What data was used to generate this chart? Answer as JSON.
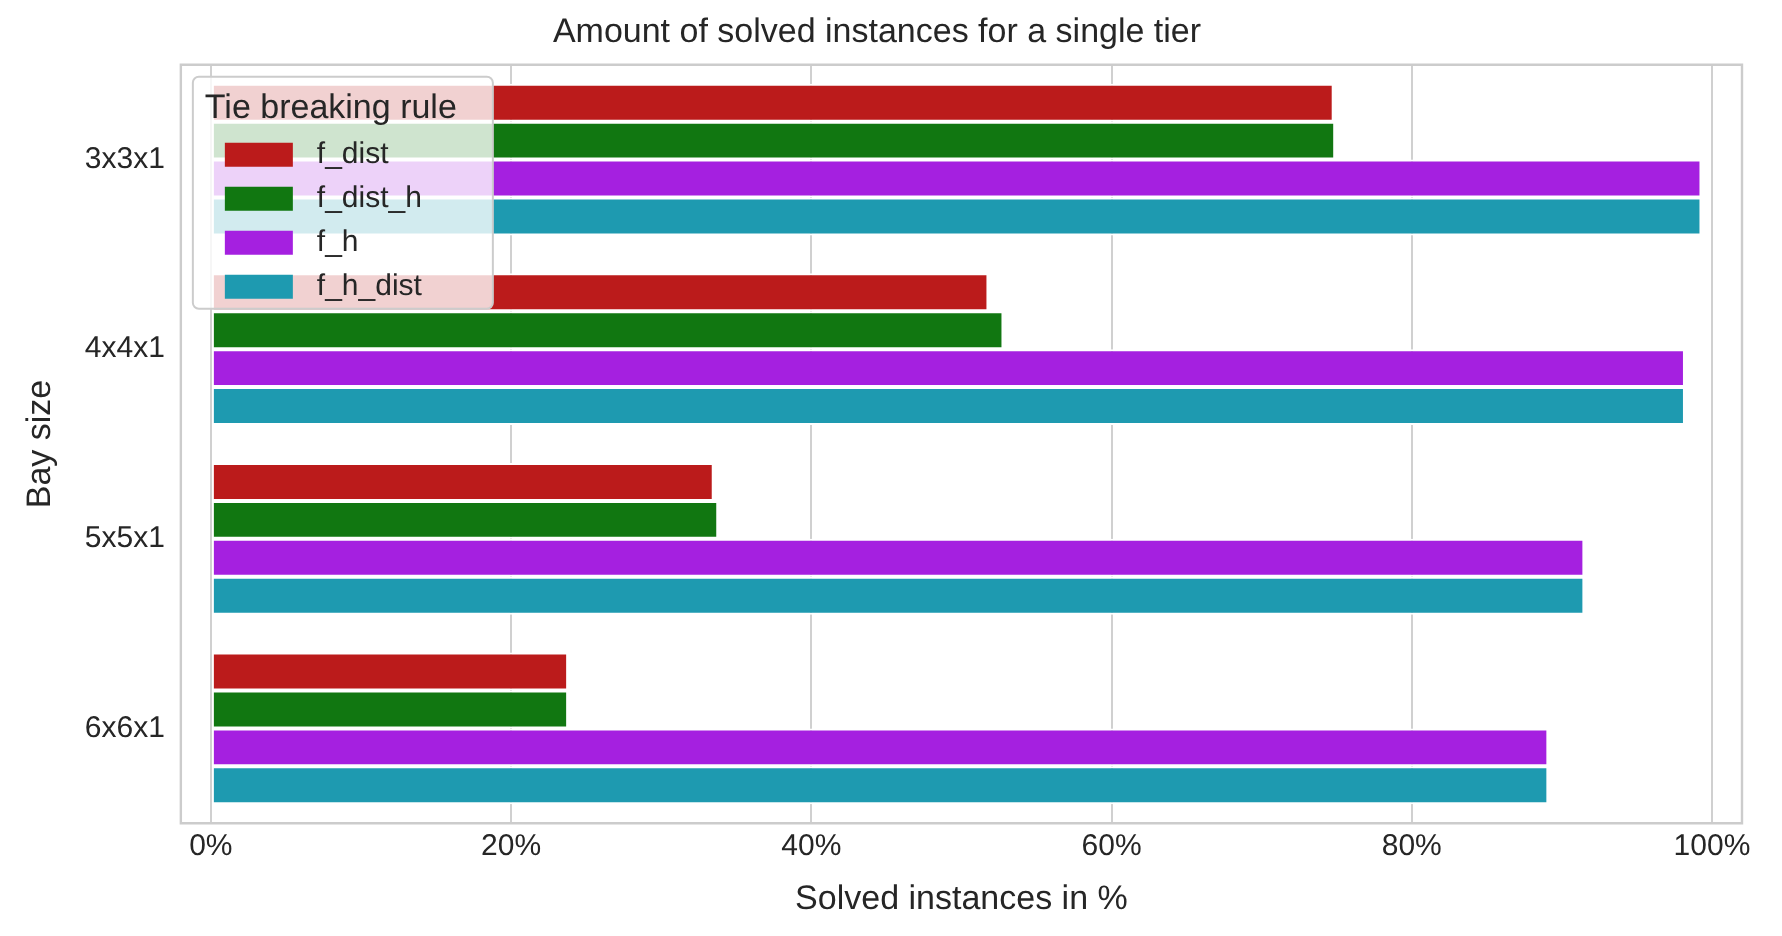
{
  "chart_data": {
    "type": "bar",
    "orientation": "horizontal",
    "title": "Amount of solved instances for a single tier",
    "xlabel": "Solved instances in %",
    "ylabel": "Bay size",
    "legend_title": "Tie breaking rule",
    "legend": "top left",
    "grid": "x",
    "categories": [
      "3x3x1",
      "4x4x1",
      "5x5x1",
      "6x6x1"
    ],
    "xlim": [
      -2,
      102
    ],
    "xticks": [
      {
        "value": 0,
        "label": "0%"
      },
      {
        "value": 20,
        "label": "20%"
      },
      {
        "value": 40,
        "label": "40%"
      },
      {
        "value": 60,
        "label": "60%"
      },
      {
        "value": 80,
        "label": "80%"
      },
      {
        "value": 100,
        "label": "100%"
      }
    ],
    "series": [
      {
        "name": "f_dist",
        "color": "#bb1b1b",
        "values": [
          74.8,
          51.8,
          33.5,
          23.8
        ]
      },
      {
        "name": "f_dist_h",
        "color": "#117711",
        "values": [
          74.9,
          52.8,
          33.8,
          23.8
        ]
      },
      {
        "name": "f_h",
        "color": "#a520e0",
        "values": [
          99.3,
          98.2,
          91.5,
          89.1
        ]
      },
      {
        "name": "f_h_dist",
        "color": "#1e9ab0",
        "values": [
          99.3,
          98.2,
          91.5,
          89.1
        ]
      }
    ]
  }
}
